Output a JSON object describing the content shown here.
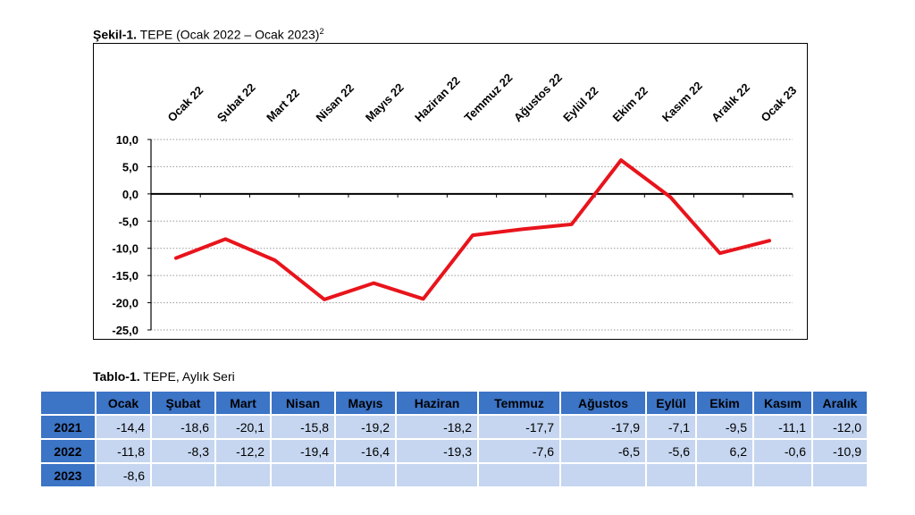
{
  "figure": {
    "title_bold": "Şekil-1.",
    "title_rest": "TEPE (Ocak 2022 – Ocak 2023)",
    "title_sup": "2"
  },
  "chart_data": {
    "type": "line",
    "categories": [
      "Ocak 22",
      "Şubat 22",
      "Mart 22",
      "Nisan 22",
      "Mayıs 22",
      "Haziran 22",
      "Temmuz 22",
      "Ağustos 22",
      "Eylül 22",
      "Ekim 22",
      "Kasım 22",
      "Aralık 22",
      "Ocak 23"
    ],
    "series": [
      {
        "values": [
          -11.8,
          -8.3,
          -12.2,
          -19.4,
          -16.4,
          -19.3,
          -7.6,
          -6.5,
          -5.6,
          6.2,
          -0.6,
          -10.9,
          -8.6
        ],
        "color": "#e8141c"
      }
    ],
    "ylim": [
      -25,
      10
    ],
    "yticks": [
      "10,0",
      "5,0",
      "0,0",
      "-5,0",
      "-10,0",
      "-15,0",
      "-20,0",
      "-25,0"
    ],
    "ytick_values": [
      10,
      5,
      0,
      -5,
      -10,
      -15,
      -20,
      -25
    ],
    "grid": "horizontal dotted",
    "legend": "none"
  },
  "table": {
    "title_bold": "Tablo-1.",
    "title_rest": "TEPE, Aylık Seri",
    "headers": [
      "Ocak",
      "Şubat",
      "Mart",
      "Nisan",
      "Mayıs",
      "Haziran",
      "Temmuz",
      "Ağustos",
      "Eylül",
      "Ekim",
      "Kasım",
      "Aralık"
    ],
    "rows": [
      {
        "year": "2021",
        "values": [
          "-14,4",
          "-18,6",
          "-20,1",
          "-15,8",
          "-19,2",
          "-18,2",
          "-17,7",
          "-17,9",
          "-7,1",
          "-9,5",
          "-11,1",
          "-12,0"
        ]
      },
      {
        "year": "2022",
        "values": [
          "-11,8",
          "-8,3",
          "-12,2",
          "-19,4",
          "-16,4",
          "-19,3",
          "-7,6",
          "-6,5",
          "-5,6",
          "6,2",
          "-0,6",
          "-10,9"
        ]
      },
      {
        "year": "2023",
        "values": [
          "-8,6",
          "",
          "",
          "",
          "",
          "",
          "",
          "",
          "",
          "",
          "",
          ""
        ]
      }
    ]
  },
  "colors": {
    "header_blue": "#3c74c6",
    "cell_light": "#c6d6f0",
    "line_red": "#e8141c"
  }
}
